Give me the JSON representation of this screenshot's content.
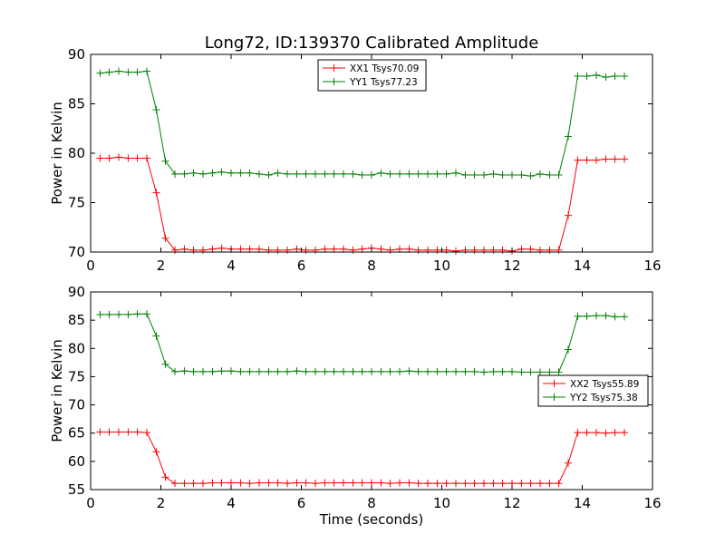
{
  "chart_data": [
    {
      "type": "line",
      "title": "Long72, ID:139370 Calibrated Amplitude",
      "xlabel": "",
      "ylabel": "Power in Kelvin",
      "xlim": [
        0,
        16
      ],
      "ylim": [
        70,
        90
      ],
      "xticks": [
        0,
        2,
        4,
        6,
        8,
        10,
        12,
        14,
        16
      ],
      "yticks": [
        70,
        75,
        80,
        85,
        90
      ],
      "legend_position": "top-center",
      "x": [
        0.27,
        0.53,
        0.8,
        1.07,
        1.33,
        1.6,
        1.87,
        2.13,
        2.4,
        2.67,
        2.93,
        3.2,
        3.47,
        3.73,
        4.0,
        4.27,
        4.53,
        4.8,
        5.07,
        5.33,
        5.6,
        5.87,
        6.13,
        6.4,
        6.67,
        6.93,
        7.2,
        7.47,
        7.73,
        8.0,
        8.27,
        8.53,
        8.8,
        9.07,
        9.33,
        9.6,
        9.87,
        10.13,
        10.4,
        10.67,
        10.93,
        11.2,
        11.47,
        11.73,
        12.0,
        12.27,
        12.53,
        12.8,
        13.07,
        13.33,
        13.6,
        13.87,
        14.13,
        14.4,
        14.67,
        14.93,
        15.2
      ],
      "series": [
        {
          "name": "XX1 Tsys70.09",
          "color": "#ff0000",
          "values": [
            79.5,
            79.5,
            79.6,
            79.5,
            79.5,
            79.5,
            76.0,
            71.4,
            70.2,
            70.3,
            70.2,
            70.2,
            70.3,
            70.4,
            70.3,
            70.3,
            70.3,
            70.3,
            70.2,
            70.2,
            70.2,
            70.3,
            70.2,
            70.2,
            70.3,
            70.3,
            70.3,
            70.2,
            70.3,
            70.4,
            70.3,
            70.2,
            70.3,
            70.3,
            70.2,
            70.2,
            70.2,
            70.2,
            70.1,
            70.2,
            70.2,
            70.2,
            70.2,
            70.2,
            70.1,
            70.3,
            70.3,
            70.2,
            70.2,
            70.2,
            73.7,
            79.3,
            79.3,
            79.3,
            79.4,
            79.4,
            79.4
          ]
        },
        {
          "name": "YY1 Tsys77.23",
          "color": "#008000",
          "values": [
            88.1,
            88.2,
            88.3,
            88.2,
            88.2,
            88.3,
            84.4,
            79.2,
            77.9,
            77.9,
            78.0,
            77.9,
            78.0,
            78.1,
            78.0,
            78.0,
            78.0,
            77.9,
            77.8,
            78.0,
            77.9,
            77.9,
            77.9,
            77.9,
            77.9,
            77.9,
            77.9,
            77.9,
            77.8,
            77.8,
            78.0,
            77.9,
            77.9,
            77.9,
            77.9,
            77.9,
            77.9,
            77.9,
            78.0,
            77.8,
            77.8,
            77.8,
            77.9,
            77.8,
            77.8,
            77.8,
            77.7,
            77.9,
            77.8,
            77.8,
            81.7,
            87.8,
            87.8,
            87.9,
            87.7,
            87.8,
            87.8
          ]
        }
      ]
    },
    {
      "type": "line",
      "title": "",
      "xlabel": "Time (seconds)",
      "ylabel": "Power in Kelvin",
      "xlim": [
        0,
        16
      ],
      "ylim": [
        55,
        90
      ],
      "xticks": [
        0,
        2,
        4,
        6,
        8,
        10,
        12,
        14,
        16
      ],
      "yticks": [
        55,
        60,
        65,
        70,
        75,
        80,
        85,
        90
      ],
      "legend_position": "center-right",
      "x": [
        0.27,
        0.53,
        0.8,
        1.07,
        1.33,
        1.6,
        1.87,
        2.13,
        2.4,
        2.67,
        2.93,
        3.2,
        3.47,
        3.73,
        4.0,
        4.27,
        4.53,
        4.8,
        5.07,
        5.33,
        5.6,
        5.87,
        6.13,
        6.4,
        6.67,
        6.93,
        7.2,
        7.47,
        7.73,
        8.0,
        8.27,
        8.53,
        8.8,
        9.07,
        9.33,
        9.6,
        9.87,
        10.13,
        10.4,
        10.67,
        10.93,
        11.2,
        11.47,
        11.73,
        12.0,
        12.27,
        12.53,
        12.8,
        13.07,
        13.33,
        13.6,
        13.87,
        14.13,
        14.4,
        14.67,
        14.93,
        15.2
      ],
      "series": [
        {
          "name": "XX2 Tsys55.89",
          "color": "#ff0000",
          "values": [
            65.2,
            65.2,
            65.2,
            65.2,
            65.2,
            65.1,
            61.7,
            57.2,
            56.1,
            56.1,
            56.1,
            56.1,
            56.2,
            56.2,
            56.2,
            56.2,
            56.1,
            56.2,
            56.2,
            56.2,
            56.1,
            56.2,
            56.2,
            56.1,
            56.2,
            56.2,
            56.2,
            56.2,
            56.2,
            56.2,
            56.2,
            56.1,
            56.2,
            56.2,
            56.1,
            56.1,
            56.1,
            56.1,
            56.1,
            56.1,
            56.1,
            56.1,
            56.1,
            56.1,
            56.1,
            56.1,
            56.1,
            56.1,
            56.1,
            56.1,
            59.7,
            65.1,
            65.1,
            65.1,
            65.0,
            65.1,
            65.1
          ]
        },
        {
          "name": "YY2 Tsys75.38",
          "color": "#008000",
          "values": [
            86.0,
            86.0,
            86.0,
            86.0,
            86.1,
            86.1,
            82.2,
            77.2,
            75.9,
            76.0,
            75.9,
            75.9,
            75.9,
            76.0,
            76.0,
            75.9,
            75.9,
            75.9,
            75.9,
            75.9,
            75.9,
            76.0,
            75.9,
            75.9,
            75.9,
            75.9,
            75.9,
            75.9,
            75.9,
            75.9,
            75.9,
            75.9,
            75.9,
            76.0,
            75.9,
            75.9,
            75.9,
            75.9,
            75.9,
            75.9,
            75.9,
            75.8,
            75.9,
            75.9,
            75.9,
            75.8,
            75.8,
            75.8,
            75.8,
            75.8,
            79.8,
            85.7,
            85.7,
            85.8,
            85.8,
            85.6,
            85.6
          ]
        }
      ]
    }
  ]
}
